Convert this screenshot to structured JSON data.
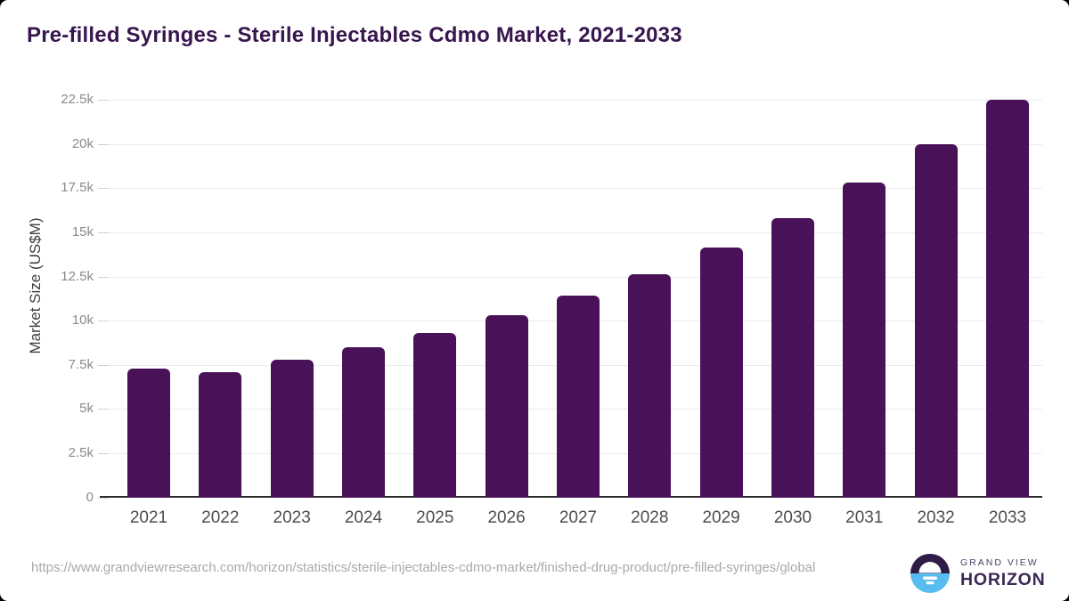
{
  "chart_data": {
    "type": "bar",
    "title": "Pre-filled Syringes - Sterile Injectables Cdmo Market, 2021-2033",
    "xlabel": "",
    "ylabel": "Market Size (US$M)",
    "categories": [
      "2021",
      "2022",
      "2023",
      "2024",
      "2025",
      "2026",
      "2027",
      "2028",
      "2029",
      "2030",
      "2031",
      "2032",
      "2033"
    ],
    "values": [
      7300,
      7100,
      7800,
      8500,
      9300,
      10300,
      11400,
      12650,
      14150,
      15800,
      17800,
      20000,
      22500
    ],
    "ylim": [
      0,
      22500
    ],
    "ytick_step": 2500,
    "ytick_labels": [
      "0",
      "2.5k",
      "5k",
      "7.5k",
      "10k",
      "12.5k",
      "15k",
      "17.5k",
      "20k",
      "22.5k"
    ],
    "grid": true,
    "legend": false,
    "bar_color": "#491157"
  },
  "footer": {
    "source_url": "https://www.grandviewresearch.com/horizon/statistics/sterile-injectables-cdmo-market/finished-drug-product/pre-filled-syringes/global",
    "brand_line1": "GRAND VIEW",
    "brand_line2": "HORIZON"
  },
  "colors": {
    "bar": "#491157",
    "title_text": "#37164e",
    "logo_purple": "#2e1b47",
    "logo_blue": "#57bdf0"
  }
}
